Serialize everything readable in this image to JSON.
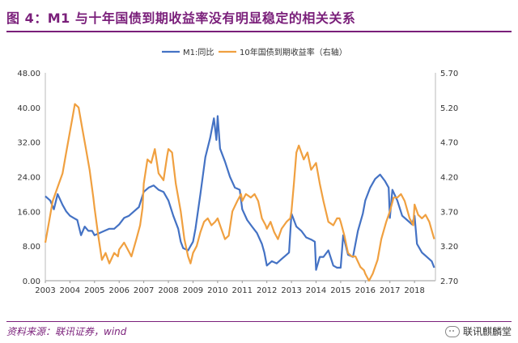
{
  "figure": {
    "title": "图 4：M1 与十年国债到期收益率没有明显稳定的相关关系",
    "source": "资料来源：联讯证券，wind",
    "watermark": "联讯麒麟堂",
    "watermark_icon": "wechat-icon"
  },
  "chart_data": {
    "type": "line",
    "title": "",
    "xlabel": "",
    "ylabel": "",
    "y2label": "",
    "grid": false,
    "legend_position": "top",
    "x_ticks": [
      "2003",
      "2004",
      "2005",
      "2006",
      "2007",
      "2008",
      "2009",
      "2010",
      "2011",
      "2012",
      "2013",
      "2014",
      "2015",
      "2016",
      "2017",
      "2018"
    ],
    "y_ticks_left": [
      "0.00",
      "8.00",
      "16.00",
      "24.00",
      "32.00",
      "40.00",
      "48.00"
    ],
    "y_ticks_right": [
      "2.70",
      "3.20",
      "3.70",
      "4.20",
      "4.70",
      "5.20",
      "5.70"
    ],
    "ylim_left": [
      0,
      48
    ],
    "ylim_right": [
      2.7,
      5.7
    ],
    "series": [
      {
        "name": "M1:同比",
        "axis": "left",
        "color": "#4472c4",
        "points": [
          [
            2003.0,
            19.5
          ],
          [
            2003.2,
            18.5
          ],
          [
            2003.35,
            16.5
          ],
          [
            2003.5,
            20.0
          ],
          [
            2003.7,
            17.5
          ],
          [
            2003.85,
            16.0
          ],
          [
            2004.0,
            15.0
          ],
          [
            2004.15,
            14.5
          ],
          [
            2004.3,
            14.0
          ],
          [
            2004.45,
            10.5
          ],
          [
            2004.6,
            12.5
          ],
          [
            2004.75,
            11.5
          ],
          [
            2004.9,
            11.5
          ],
          [
            2005.0,
            10.5
          ],
          [
            2005.2,
            11.0
          ],
          [
            2005.4,
            11.5
          ],
          [
            2005.6,
            12.0
          ],
          [
            2005.8,
            12.0
          ],
          [
            2006.0,
            13.0
          ],
          [
            2006.2,
            14.5
          ],
          [
            2006.4,
            15.0
          ],
          [
            2006.6,
            16.0
          ],
          [
            2006.8,
            17.0
          ],
          [
            2007.0,
            20.5
          ],
          [
            2007.2,
            21.5
          ],
          [
            2007.4,
            22.0
          ],
          [
            2007.6,
            21.0
          ],
          [
            2007.8,
            20.5
          ],
          [
            2008.0,
            18.5
          ],
          [
            2008.2,
            15.0
          ],
          [
            2008.4,
            12.0
          ],
          [
            2008.5,
            9.0
          ],
          [
            2008.6,
            7.5
          ],
          [
            2008.8,
            7.0
          ],
          [
            2008.9,
            8.0
          ],
          [
            2009.0,
            9.0
          ],
          [
            2009.1,
            12.0
          ],
          [
            2009.3,
            20.0
          ],
          [
            2009.5,
            28.5
          ],
          [
            2009.7,
            33.0
          ],
          [
            2009.85,
            37.5
          ],
          [
            2009.95,
            32.5
          ],
          [
            2010.0,
            38.0
          ],
          [
            2010.1,
            30.5
          ],
          [
            2010.3,
            27.5
          ],
          [
            2010.5,
            24.0
          ],
          [
            2010.7,
            21.5
          ],
          [
            2010.9,
            21.0
          ],
          [
            2011.0,
            16.5
          ],
          [
            2011.2,
            14.0
          ],
          [
            2011.4,
            12.5
          ],
          [
            2011.6,
            11.0
          ],
          [
            2011.8,
            8.5
          ],
          [
            2011.9,
            6.5
          ],
          [
            2012.0,
            3.5
          ],
          [
            2012.2,
            4.5
          ],
          [
            2012.4,
            4.0
          ],
          [
            2012.6,
            5.0
          ],
          [
            2012.8,
            6.0
          ],
          [
            2012.9,
            6.5
          ],
          [
            2013.0,
            15.5
          ],
          [
            2013.2,
            12.5
          ],
          [
            2013.4,
            11.5
          ],
          [
            2013.6,
            10.0
          ],
          [
            2013.8,
            9.5
          ],
          [
            2013.95,
            9.0
          ],
          [
            2014.0,
            2.5
          ],
          [
            2014.15,
            5.5
          ],
          [
            2014.3,
            5.5
          ],
          [
            2014.5,
            7.0
          ],
          [
            2014.7,
            3.5
          ],
          [
            2014.85,
            3.0
          ],
          [
            2015.0,
            3.0
          ],
          [
            2015.1,
            10.5
          ],
          [
            2015.3,
            6.0
          ],
          [
            2015.5,
            5.5
          ],
          [
            2015.7,
            11.5
          ],
          [
            2015.9,
            15.5
          ],
          [
            2016.0,
            18.5
          ],
          [
            2016.2,
            21.5
          ],
          [
            2016.4,
            23.5
          ],
          [
            2016.6,
            24.5
          ],
          [
            2016.8,
            23.0
          ],
          [
            2016.95,
            21.5
          ],
          [
            2017.0,
            14.5
          ],
          [
            2017.1,
            21.0
          ],
          [
            2017.3,
            18.5
          ],
          [
            2017.5,
            15.0
          ],
          [
            2017.7,
            14.0
          ],
          [
            2017.9,
            13.0
          ],
          [
            2018.0,
            15.0
          ],
          [
            2018.1,
            8.5
          ],
          [
            2018.3,
            6.5
          ],
          [
            2018.5,
            5.5
          ],
          [
            2018.7,
            4.5
          ],
          [
            2018.8,
            3.0
          ]
        ]
      },
      {
        "name": "10年国债到期收益率（右轴）",
        "axis": "right",
        "color": "#f0a040",
        "points": [
          [
            2003.0,
            3.25
          ],
          [
            2003.15,
            3.55
          ],
          [
            2003.3,
            3.85
          ],
          [
            2003.5,
            4.05
          ],
          [
            2003.7,
            4.25
          ],
          [
            2003.85,
            4.55
          ],
          [
            2004.0,
            4.85
          ],
          [
            2004.1,
            5.05
          ],
          [
            2004.2,
            5.25
          ],
          [
            2004.35,
            5.2
          ],
          [
            2004.5,
            4.9
          ],
          [
            2004.65,
            4.6
          ],
          [
            2004.8,
            4.3
          ],
          [
            2004.95,
            3.9
          ],
          [
            2005.0,
            3.75
          ],
          [
            2005.15,
            3.35
          ],
          [
            2005.3,
            3.0
          ],
          [
            2005.45,
            3.1
          ],
          [
            2005.6,
            2.95
          ],
          [
            2005.8,
            3.1
          ],
          [
            2005.95,
            3.05
          ],
          [
            2006.0,
            3.15
          ],
          [
            2006.2,
            3.25
          ],
          [
            2006.35,
            3.15
          ],
          [
            2006.5,
            3.05
          ],
          [
            2006.7,
            3.3
          ],
          [
            2006.85,
            3.5
          ],
          [
            2006.95,
            3.75
          ],
          [
            2007.0,
            4.1
          ],
          [
            2007.15,
            4.45
          ],
          [
            2007.3,
            4.4
          ],
          [
            2007.45,
            4.6
          ],
          [
            2007.6,
            4.25
          ],
          [
            2007.8,
            4.15
          ],
          [
            2007.95,
            4.5
          ],
          [
            2008.0,
            4.6
          ],
          [
            2008.15,
            4.55
          ],
          [
            2008.3,
            4.1
          ],
          [
            2008.5,
            3.7
          ],
          [
            2008.65,
            3.3
          ],
          [
            2008.8,
            3.05
          ],
          [
            2008.9,
            2.95
          ],
          [
            2009.0,
            3.1
          ],
          [
            2009.15,
            3.2
          ],
          [
            2009.3,
            3.4
          ],
          [
            2009.45,
            3.55
          ],
          [
            2009.6,
            3.6
          ],
          [
            2009.75,
            3.5
          ],
          [
            2009.9,
            3.55
          ],
          [
            2010.0,
            3.6
          ],
          [
            2010.15,
            3.45
          ],
          [
            2010.3,
            3.3
          ],
          [
            2010.45,
            3.35
          ],
          [
            2010.6,
            3.7
          ],
          [
            2010.8,
            3.85
          ],
          [
            2010.95,
            3.95
          ],
          [
            2011.0,
            3.85
          ],
          [
            2011.15,
            3.95
          ],
          [
            2011.35,
            3.9
          ],
          [
            2011.5,
            3.95
          ],
          [
            2011.65,
            3.85
          ],
          [
            2011.8,
            3.6
          ],
          [
            2011.95,
            3.5
          ],
          [
            2012.0,
            3.45
          ],
          [
            2012.15,
            3.55
          ],
          [
            2012.3,
            3.4
          ],
          [
            2012.45,
            3.3
          ],
          [
            2012.6,
            3.45
          ],
          [
            2012.8,
            3.55
          ],
          [
            2012.95,
            3.6
          ],
          [
            2013.0,
            3.7
          ],
          [
            2013.1,
            4.1
          ],
          [
            2013.2,
            4.55
          ],
          [
            2013.3,
            4.65
          ],
          [
            2013.5,
            4.45
          ],
          [
            2013.65,
            4.55
          ],
          [
            2013.8,
            4.3
          ],
          [
            2014.0,
            4.4
          ],
          [
            2014.15,
            4.1
          ],
          [
            2014.3,
            3.85
          ],
          [
            2014.5,
            3.55
          ],
          [
            2014.7,
            3.5
          ],
          [
            2014.85,
            3.6
          ],
          [
            2014.95,
            3.6
          ],
          [
            2015.0,
            3.55
          ],
          [
            2015.15,
            3.35
          ],
          [
            2015.3,
            3.1
          ],
          [
            2015.45,
            3.05
          ],
          [
            2015.6,
            3.05
          ],
          [
            2015.8,
            2.9
          ],
          [
            2015.95,
            2.85
          ],
          [
            2016.0,
            2.8
          ],
          [
            2016.15,
            2.7
          ],
          [
            2016.3,
            2.8
          ],
          [
            2016.5,
            3.0
          ],
          [
            2016.65,
            3.3
          ],
          [
            2016.85,
            3.55
          ],
          [
            2016.95,
            3.65
          ],
          [
            2017.0,
            3.7
          ],
          [
            2017.15,
            3.9
          ],
          [
            2017.3,
            3.9
          ],
          [
            2017.45,
            3.95
          ],
          [
            2017.6,
            3.85
          ],
          [
            2017.8,
            3.6
          ],
          [
            2017.95,
            3.5
          ],
          [
            2018.0,
            3.8
          ],
          [
            2018.15,
            3.65
          ],
          [
            2018.3,
            3.6
          ],
          [
            2018.45,
            3.65
          ],
          [
            2018.6,
            3.55
          ],
          [
            2018.8,
            3.3
          ]
        ]
      }
    ]
  }
}
